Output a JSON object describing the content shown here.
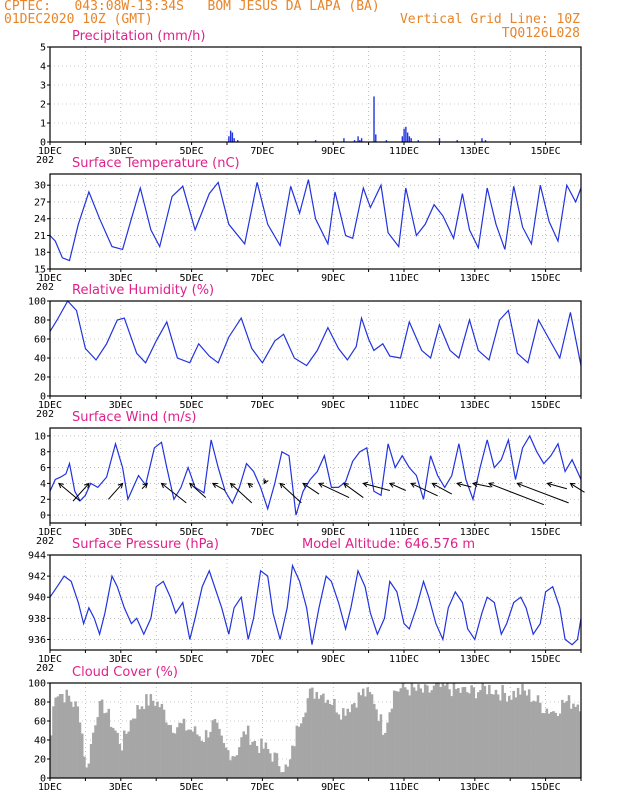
{
  "header": {
    "left_line1": "CPTEC:   043:08W-13:34S   BOM JESUS DA LAPA (BA)",
    "left_line2": "01DEC2020 10Z (GMT)",
    "right_line1": "Vertical Grid Line: 10Z",
    "right_line2": "TQ0126L028"
  },
  "colors": {
    "header": "#e8852a",
    "title": "#e0218a",
    "line": "#2233dd",
    "cloud": "#a6a6a6",
    "arrow": "#000000"
  },
  "x_axis": {
    "day_labels": [
      "1DEC",
      "3DEC",
      "5DEC",
      "7DEC",
      "9DEC",
      "11DEC",
      "13DEC",
      "15DEC"
    ],
    "year_fragment": "202",
    "range_days": [
      0,
      15
    ]
  },
  "chart_data": [
    {
      "type": "bar",
      "title": "Precipitation (mm/h)",
      "ylim": [
        0,
        5
      ],
      "yticks": [
        "0",
        "1",
        "2",
        "3",
        "4",
        "5"
      ],
      "note": "events as [day offset from 01DEC 10Z, mm/h]",
      "x": [
        5.05,
        5.1,
        5.15,
        5.2,
        5.3,
        7.5,
        8.3,
        8.6,
        8.7,
        8.75,
        8.8,
        9.15,
        9.2,
        9.5,
        9.95,
        10.0,
        10.05,
        10.1,
        10.15,
        10.2,
        10.4,
        11.0,
        11.5,
        12.2,
        12.3
      ],
      "values": [
        0.3,
        0.6,
        0.5,
        0.2,
        0.1,
        0.1,
        0.2,
        0.1,
        0.3,
        0.1,
        0.2,
        2.4,
        0.4,
        0.1,
        0.3,
        0.7,
        0.8,
        0.5,
        0.3,
        0.2,
        0.1,
        0.2,
        0.1,
        0.2,
        0.1
      ]
    },
    {
      "type": "line",
      "title": "Surface Temperature (nC)",
      "ylim": [
        15,
        32
      ],
      "yticks": [
        "15",
        "18",
        "21",
        "24",
        "27",
        "30"
      ],
      "series": [
        {
          "x": [
            0,
            0.15,
            0.35,
            0.55,
            0.8,
            1.1,
            1.4,
            1.75,
            2.05,
            2.3,
            2.55,
            2.85,
            3.1,
            3.45,
            3.75,
            4.1,
            4.5,
            4.75,
            5.05,
            5.5,
            5.85,
            6.15,
            6.5,
            6.8,
            7.05,
            7.3,
            7.5,
            7.85,
            8.05,
            8.35,
            8.55,
            8.85,
            9.05,
            9.35,
            9.55,
            9.85,
            10.05,
            10.35,
            10.6,
            10.85,
            11.1,
            11.4,
            11.65,
            11.85,
            12.1,
            12.35,
            12.6,
            12.85,
            13.1,
            13.35,
            13.6,
            13.85,
            14.1,
            14.35,
            14.6,
            14.85,
            15.0
          ],
          "y": [
            21,
            20,
            17,
            16.5,
            23,
            28.8,
            24,
            19,
            18.5,
            24,
            29.5,
            22,
            19,
            28,
            29.8,
            22,
            28.5,
            30.5,
            23,
            19.5,
            30.5,
            23,
            19.2,
            29.8,
            25,
            31,
            24,
            19.5,
            28.8,
            21,
            20.5,
            29.5,
            26,
            30,
            21.5,
            19,
            29.5,
            21,
            23,
            26.5,
            24.5,
            20.5,
            28.5,
            22,
            18.8,
            29.5,
            23,
            18.5,
            29.8,
            22.5,
            19.5,
            30,
            23.5,
            20,
            30,
            27,
            29.5
          ]
        }
      ]
    },
    {
      "type": "line",
      "title": "Relative Humidity (%)",
      "ylim": [
        0,
        100
      ],
      "yticks": [
        "0",
        "20",
        "40",
        "60",
        "80",
        "100"
      ],
      "series": [
        {
          "x": [
            0,
            0.2,
            0.5,
            0.75,
            1.0,
            1.3,
            1.6,
            1.9,
            2.1,
            2.45,
            2.7,
            3.0,
            3.3,
            3.6,
            3.95,
            4.2,
            4.5,
            4.75,
            5.05,
            5.4,
            5.7,
            6.0,
            6.35,
            6.6,
            6.9,
            7.25,
            7.55,
            7.85,
            8.15,
            8.4,
            8.65,
            8.8,
            9.0,
            9.15,
            9.4,
            9.6,
            9.9,
            10.15,
            10.5,
            10.75,
            11.0,
            11.3,
            11.55,
            11.85,
            12.1,
            12.4,
            12.7,
            12.95,
            13.2,
            13.5,
            13.8,
            14.1,
            14.4,
            14.7,
            15.0
          ],
          "y": [
            68,
            80,
            100,
            90,
            50,
            38,
            55,
            80,
            82,
            45,
            35,
            58,
            78,
            40,
            35,
            55,
            42,
            35,
            62,
            82,
            50,
            35,
            58,
            65,
            40,
            32,
            48,
            72,
            50,
            38,
            52,
            82,
            60,
            48,
            55,
            42,
            40,
            78,
            48,
            40,
            75,
            48,
            40,
            80,
            48,
            38,
            80,
            90,
            45,
            35,
            80,
            60,
            40,
            88,
            32
          ]
        }
      ]
    },
    {
      "type": "line",
      "title": "Surface Wind (m/s)",
      "ylim": [
        -1,
        11
      ],
      "yticks": [
        "0",
        "2",
        "4",
        "6",
        "8",
        "10"
      ],
      "series": [
        {
          "x": [
            0,
            0.15,
            0.3,
            0.45,
            0.55,
            0.7,
            0.85,
            1.0,
            1.15,
            1.35,
            1.6,
            1.85,
            2.05,
            2.2,
            2.35,
            2.5,
            2.7,
            2.95,
            3.15,
            3.3,
            3.5,
            3.7,
            3.9,
            4.1,
            4.35,
            4.55,
            4.75,
            4.95,
            5.15,
            5.35,
            5.55,
            5.75,
            5.95,
            6.15,
            6.35,
            6.55,
            6.75,
            6.95,
            7.15,
            7.35,
            7.55,
            7.75,
            7.95,
            8.15,
            8.35,
            8.55,
            8.75,
            8.95,
            9.15,
            9.35,
            9.55,
            9.75,
            9.95,
            10.15,
            10.35,
            10.55,
            10.75,
            10.95,
            11.15,
            11.35,
            11.55,
            11.75,
            11.95,
            12.15,
            12.35,
            12.55,
            12.75,
            12.95,
            13.15,
            13.35,
            13.55,
            13.75,
            13.95,
            14.15,
            14.35,
            14.55,
            14.75,
            14.95,
            15.0
          ],
          "y": [
            3,
            4.5,
            4.8,
            5.2,
            6.5,
            3,
            1.8,
            2.5,
            4,
            3.5,
            4.8,
            9,
            6,
            2,
            3.5,
            5,
            3.8,
            8.5,
            9.2,
            6,
            2,
            3.5,
            6,
            3.5,
            2.8,
            9.5,
            6,
            3,
            1.5,
            3.5,
            6.5,
            5.5,
            3.5,
            0.8,
            4,
            8,
            7.5,
            0,
            3,
            4.5,
            5.5,
            7.5,
            3.5,
            3.5,
            4.2,
            6.8,
            8,
            8.5,
            3,
            2.5,
            9,
            6,
            7.5,
            6,
            5,
            2,
            7.5,
            5,
            3.5,
            5,
            9,
            4.5,
            2,
            6,
            9.5,
            6,
            7,
            9.5,
            4.5,
            8.5,
            10,
            8,
            6.5,
            7.5,
            9,
            5.5,
            7,
            5,
            4.5
          ]
        }
      ],
      "vectors": [
        {
          "x": 0.25,
          "dx": 0.6,
          "dy": -0.5
        },
        {
          "x": 1.1,
          "dx": -0.45,
          "dy": -0.5
        },
        {
          "x": 2.05,
          "dx": -0.4,
          "dy": -0.45
        },
        {
          "x": 2.75,
          "dx": -0.15,
          "dy": -0.15
        },
        {
          "x": 3.15,
          "dx": 0.7,
          "dy": -0.55
        },
        {
          "x": 3.95,
          "dx": 0.45,
          "dy": -0.4
        },
        {
          "x": 4.6,
          "dx": 0.35,
          "dy": -0.2
        },
        {
          "x": 5.1,
          "dx": 0.6,
          "dy": -0.55
        },
        {
          "x": 5.6,
          "dx": 0.12,
          "dy": -0.1
        },
        {
          "x": 6.05,
          "dx": 0.05,
          "dy": 0.1
        },
        {
          "x": 6.5,
          "dx": 0.6,
          "dy": -0.55
        },
        {
          "x": 7.15,
          "dx": 0.45,
          "dy": -0.3
        },
        {
          "x": 7.6,
          "dx": 0.85,
          "dy": -0.4
        },
        {
          "x": 8.3,
          "dx": 0.55,
          "dy": -0.4
        },
        {
          "x": 8.85,
          "dx": 0.75,
          "dy": -0.2
        },
        {
          "x": 9.6,
          "dx": 0.45,
          "dy": -0.2
        },
        {
          "x": 10.2,
          "dx": 0.75,
          "dy": -0.35
        },
        {
          "x": 10.8,
          "dx": 0.55,
          "dy": -0.3
        },
        {
          "x": 11.5,
          "dx": 0.4,
          "dy": -0.1
        },
        {
          "x": 11.95,
          "dx": 0.5,
          "dy": -0.1
        },
        {
          "x": 12.4,
          "dx": 1.55,
          "dy": -0.6
        },
        {
          "x": 13.2,
          "dx": 1.45,
          "dy": -0.55
        },
        {
          "x": 14.05,
          "dx": 0.55,
          "dy": -0.15
        },
        {
          "x": 14.7,
          "dx": 0.4,
          "dy": -0.25
        }
      ]
    },
    {
      "type": "line",
      "title": "Surface Pressure (hPa)",
      "annotation": "Model Altitude: 646.576 m",
      "ylim": [
        935,
        944
      ],
      "yticks": [
        "936",
        "938",
        "940",
        "942",
        "944"
      ],
      "series": [
        {
          "x": [
            0,
            0.2,
            0.4,
            0.6,
            0.8,
            0.95,
            1.1,
            1.25,
            1.4,
            1.55,
            1.75,
            1.9,
            2.1,
            2.3,
            2.45,
            2.65,
            2.85,
            3.0,
            3.2,
            3.4,
            3.55,
            3.75,
            3.95,
            4.1,
            4.3,
            4.5,
            4.65,
            4.85,
            5.05,
            5.2,
            5.4,
            5.6,
            5.75,
            5.95,
            6.15,
            6.3,
            6.5,
            6.7,
            6.85,
            7.05,
            7.25,
            7.4,
            7.6,
            7.8,
            7.95,
            8.15,
            8.35,
            8.5,
            8.7,
            8.9,
            9.05,
            9.25,
            9.45,
            9.6,
            9.8,
            10.0,
            10.15,
            10.35,
            10.55,
            10.7,
            10.9,
            11.1,
            11.25,
            11.45,
            11.65,
            11.8,
            12.0,
            12.2,
            12.35,
            12.55,
            12.75,
            12.9,
            13.1,
            13.3,
            13.45,
            13.65,
            13.85,
            14.0,
            14.2,
            14.4,
            14.55,
            14.75,
            14.9,
            15.0
          ],
          "y": [
            940,
            941,
            942,
            941.5,
            939.5,
            937.5,
            939,
            938,
            936.5,
            938.5,
            942,
            941,
            939,
            937.5,
            938,
            936.5,
            938,
            941,
            941.5,
            940,
            938.5,
            939.5,
            936,
            938,
            941,
            942.5,
            941,
            939,
            936.5,
            939,
            940,
            936,
            938,
            942.5,
            942,
            938.5,
            936,
            939,
            943,
            941.5,
            939,
            935.5,
            939,
            942,
            941.5,
            939.5,
            937,
            939,
            942.5,
            941,
            938.5,
            936.5,
            938,
            941.5,
            940.5,
            937.5,
            937,
            939,
            941.5,
            940,
            937.5,
            936,
            939,
            940.5,
            939.5,
            937,
            936,
            938.5,
            940,
            939.5,
            936.5,
            937.5,
            939.5,
            940,
            939,
            936.5,
            937.5,
            940.5,
            941,
            939,
            936,
            935.5,
            936,
            938
          ]
        }
      ]
    },
    {
      "type": "bar",
      "title": "Cloud Cover (%)",
      "ylim": [
        0,
        100
      ],
      "yticks": [
        "0",
        "20",
        "40",
        "60",
        "80",
        "100"
      ],
      "profile_days": [
        0,
        0.1,
        0.5,
        0.8,
        1.0,
        1.3,
        1.5,
        1.8,
        2.0,
        2.3,
        2.6,
        2.9,
        3.1,
        3.4,
        3.7,
        4.0,
        4.3,
        4.6,
        4.9,
        5.2,
        5.5,
        5.8,
        6.1,
        6.4,
        6.7,
        7.0,
        7.3,
        7.6,
        7.9,
        8.2,
        8.5,
        8.8,
        9.1,
        9.4,
        9.7,
        10.0,
        10.3,
        10.6,
        10.9,
        11.2,
        11.5,
        11.8,
        12.1,
        12.4,
        12.7,
        13.0,
        13.3,
        13.6,
        13.9,
        14.2,
        14.5,
        14.8,
        15.0
      ],
      "profile_values": [
        45,
        92,
        85,
        70,
        8,
        72,
        75,
        50,
        35,
        65,
        80,
        82,
        75,
        55,
        55,
        50,
        42,
        58,
        30,
        25,
        50,
        35,
        30,
        18,
        8,
        60,
        88,
        92,
        82,
        70,
        78,
        90,
        85,
        50,
        92,
        95,
        92,
        90,
        95,
        95,
        92,
        90,
        93,
        95,
        90,
        88,
        92,
        85,
        75,
        70,
        80,
        80,
        78
      ]
    }
  ]
}
